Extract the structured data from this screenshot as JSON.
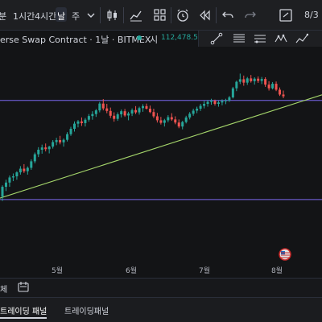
{
  "topbar": {
    "timeframes": [
      "분",
      "1시간",
      "4시간",
      "날",
      "주"
    ],
    "active_timeframe": "날",
    "page_counter": "8/3"
  },
  "symbol": {
    "title": "erse Swap Contract · 1날 · BITMEX",
    "price_prefix": "시",
    "price": "112,478.5",
    "live_color": "#26a69a"
  },
  "icons": {
    "top": [
      "chevron-down-icon",
      "candlestick-icon",
      "indicators-icon",
      "templates-icon",
      "alert-icon",
      "replay-icon",
      "undo-icon",
      "redo-icon",
      "layout-icon"
    ],
    "drawing": [
      "trendline-icon",
      "horizontal-lines-icon",
      "fib-icon",
      "pattern-icon",
      "projection-icon"
    ]
  },
  "colors": {
    "up": "#26a69a",
    "down": "#ef5350",
    "horizontal_line": "#7b68ee",
    "trendline": "#a5d66b",
    "background": "#131416"
  },
  "chart_data": {
    "type": "candlestick",
    "x_labels": [
      "5월",
      "6월",
      "7월",
      "8월"
    ],
    "horizontal_levels": [
      111000,
      76000
    ],
    "trendline": {
      "from": 76500,
      "to": 113000
    },
    "candles": [
      [
        77000,
        81000,
        75500,
        80500
      ],
      [
        80500,
        83000,
        79000,
        82000
      ],
      [
        82000,
        84500,
        80500,
        83800
      ],
      [
        83800,
        85200,
        82500,
        84200
      ],
      [
        84200,
        86000,
        83000,
        85600
      ],
      [
        85600,
        87800,
        84800,
        86900
      ],
      [
        86900,
        88500,
        85400,
        86000
      ],
      [
        86000,
        87700,
        84800,
        87200
      ],
      [
        87200,
        90200,
        86500,
        89500
      ],
      [
        89500,
        92600,
        88800,
        92000
      ],
      [
        92000,
        94500,
        91000,
        93600
      ],
      [
        93600,
        95400,
        92200,
        94400
      ],
      [
        94400,
        95800,
        93000,
        93800
      ],
      [
        93800,
        95000,
        92300,
        94700
      ],
      [
        94700,
        97000,
        94000,
        96300
      ],
      [
        96300,
        97800,
        95200,
        97000
      ],
      [
        97000,
        98500,
        95500,
        96200
      ],
      [
        96200,
        97600,
        94700,
        97100
      ],
      [
        97100,
        99800,
        96500,
        99100
      ],
      [
        99100,
        101700,
        98500,
        101000
      ],
      [
        101000,
        103600,
        100000,
        102800
      ],
      [
        102800,
        104100,
        101500,
        103600
      ],
      [
        103600,
        105000,
        102000,
        103000
      ],
      [
        103000,
        104800,
        101800,
        104200
      ],
      [
        104200,
        106200,
        103500,
        105500
      ],
      [
        105500,
        107200,
        104200,
        106200
      ],
      [
        106200,
        108000,
        105200,
        107500
      ],
      [
        107500,
        110500,
        106800,
        109900
      ],
      [
        109900,
        111500,
        107500,
        108200
      ],
      [
        108200,
        109800,
        106500,
        107300
      ],
      [
        107300,
        108500,
        104800,
        105600
      ],
      [
        105600,
        106800,
        103500,
        104500
      ],
      [
        104500,
        106800,
        103800,
        106100
      ],
      [
        106100,
        107800,
        105000,
        107200
      ],
      [
        107200,
        108000,
        105200,
        105700
      ],
      [
        105700,
        107000,
        104000,
        106400
      ],
      [
        106400,
        108200,
        105500,
        107600
      ],
      [
        107600,
        109000,
        106200,
        106800
      ],
      [
        106800,
        108800,
        106000,
        108300
      ],
      [
        108300,
        109700,
        107000,
        109000
      ],
      [
        109000,
        109900,
        107800,
        108100
      ],
      [
        108100,
        109200,
        106500,
        106900
      ],
      [
        106900,
        108100,
        104800,
        105400
      ],
      [
        105400,
        106600,
        103200,
        104000
      ],
      [
        104000,
        105200,
        102500,
        103100
      ],
      [
        103100,
        104500,
        101800,
        104000
      ],
      [
        104000,
        105800,
        103300,
        105100
      ],
      [
        105100,
        106500,
        103800,
        104300
      ],
      [
        104300,
        105400,
        102600,
        103200
      ],
      [
        103200,
        104300,
        101200,
        101800
      ],
      [
        101800,
        103800,
        100800,
        103400
      ],
      [
        103400,
        105600,
        102900,
        105000
      ],
      [
        105000,
        106900,
        104300,
        106300
      ],
      [
        106300,
        108100,
        105600,
        107400
      ],
      [
        107400,
        108800,
        106500,
        108100
      ],
      [
        108100,
        109800,
        107300,
        109100
      ],
      [
        109100,
        110800,
        108200,
        109800
      ],
      [
        109800,
        111200,
        108800,
        110500
      ],
      [
        110500,
        111600,
        109500,
        110900
      ],
      [
        110900,
        111300,
        109200,
        109800
      ],
      [
        109800,
        110900,
        108800,
        110300
      ],
      [
        110300,
        111400,
        109300,
        110800
      ],
      [
        110800,
        111600,
        109700,
        111000
      ],
      [
        111000,
        112600,
        110500,
        112100
      ],
      [
        112100,
        115800,
        111700,
        115300
      ],
      [
        115300,
        118000,
        114300,
        117600
      ],
      [
        117600,
        120500,
        116800,
        118500
      ],
      [
        118500,
        119800,
        116200,
        117300
      ],
      [
        117300,
        119300,
        116500,
        118800
      ],
      [
        118800,
        120000,
        117300,
        117800
      ],
      [
        117800,
        119200,
        116600,
        118700
      ],
      [
        118700,
        119500,
        117200,
        117900
      ],
      [
        117900,
        119300,
        116800,
        118600
      ],
      [
        118600,
        119200,
        115800,
        116600
      ],
      [
        116600,
        117800,
        114500,
        115300
      ],
      [
        115300,
        117500,
        114900,
        116900
      ],
      [
        116900,
        117700,
        114300,
        114800
      ],
      [
        114800,
        115600,
        112600,
        113100
      ],
      [
        113100,
        114500,
        111800,
        112478.5
      ]
    ]
  }
}
